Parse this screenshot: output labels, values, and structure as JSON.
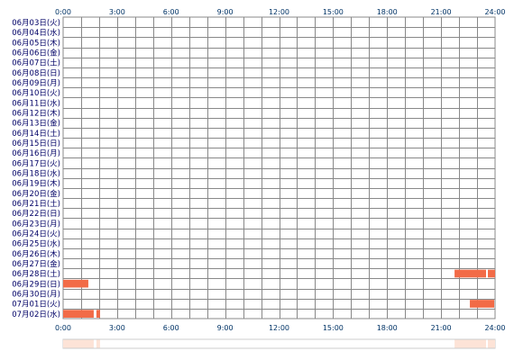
{
  "chart_data": {
    "type": "heatmap",
    "title": "",
    "xlabel": "",
    "ylabel": "",
    "x_range_hours": [
      0,
      24
    ],
    "x_tick_labels": [
      "0:00",
      "3:00",
      "6:00",
      "9:00",
      "12:00",
      "15:00",
      "18:00",
      "21:00",
      "24:00"
    ],
    "grid": true,
    "rows": [
      {
        "label": "06月03日(火)",
        "spans": []
      },
      {
        "label": "06月04日(水)",
        "spans": []
      },
      {
        "label": "06月05日(木)",
        "spans": []
      },
      {
        "label": "06月06日(金)",
        "spans": []
      },
      {
        "label": "06月07日(土)",
        "spans": []
      },
      {
        "label": "06月08日(日)",
        "spans": []
      },
      {
        "label": "06月09日(月)",
        "spans": []
      },
      {
        "label": "06月10日(火)",
        "spans": []
      },
      {
        "label": "06月11日(水)",
        "spans": []
      },
      {
        "label": "06月12日(木)",
        "spans": []
      },
      {
        "label": "06月13日(金)",
        "spans": []
      },
      {
        "label": "06月14日(土)",
        "spans": []
      },
      {
        "label": "06月15日(日)",
        "spans": []
      },
      {
        "label": "06月16日(月)",
        "spans": []
      },
      {
        "label": "06月17日(火)",
        "spans": []
      },
      {
        "label": "06月18日(水)",
        "spans": []
      },
      {
        "label": "06月19日(木)",
        "spans": []
      },
      {
        "label": "06月20日(金)",
        "spans": []
      },
      {
        "label": "06月21日(土)",
        "spans": []
      },
      {
        "label": "06月22日(日)",
        "spans": []
      },
      {
        "label": "06月23日(月)",
        "spans": []
      },
      {
        "label": "06月24日(火)",
        "spans": []
      },
      {
        "label": "06月25日(水)",
        "spans": []
      },
      {
        "label": "06月26日(木)",
        "spans": []
      },
      {
        "label": "06月27日(金)",
        "spans": []
      },
      {
        "label": "06月28日(土)",
        "spans": [
          [
            21.75,
            23.5
          ],
          [
            23.6,
            24.0
          ]
        ]
      },
      {
        "label": "06月29日(日)",
        "spans": [
          [
            0.0,
            1.4
          ]
        ]
      },
      {
        "label": "06月30日(月)",
        "spans": []
      },
      {
        "label": "07月01日(火)",
        "spans": [
          [
            22.6,
            23.95
          ]
        ]
      },
      {
        "label": "07月02日(水)",
        "spans": [
          [
            0.0,
            1.7
          ],
          [
            1.85,
            2.05
          ]
        ]
      }
    ],
    "summary_spans": [
      [
        0.0,
        1.7
      ],
      [
        1.85,
        2.05
      ],
      [
        21.75,
        23.5
      ],
      [
        23.6,
        24.0
      ]
    ],
    "colors": {
      "bar": "#f26b47",
      "bar_tick": "#ffd2c2",
      "grid": "#888888",
      "summary": "#fde3d7",
      "summary_border": "#cccccc",
      "axis_text": "#003366",
      "row_text": "#000066"
    }
  }
}
